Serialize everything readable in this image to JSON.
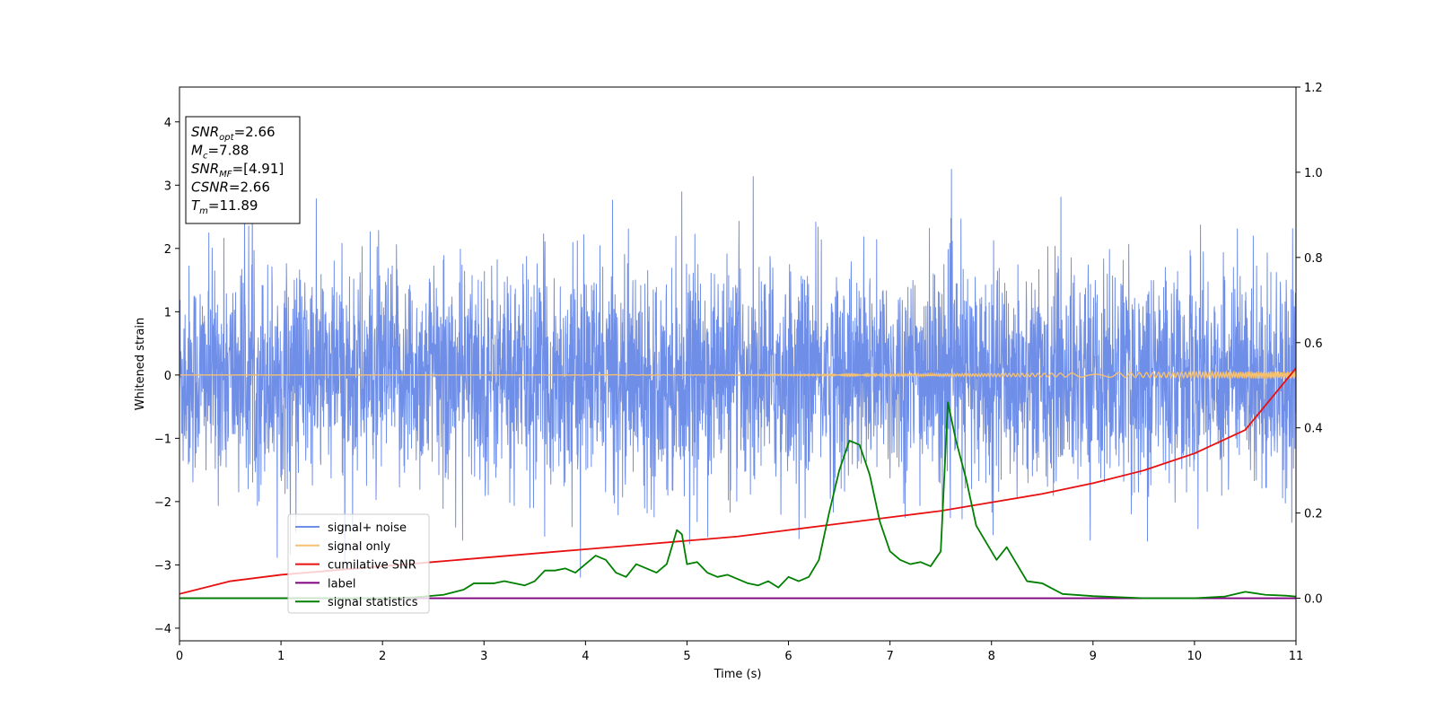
{
  "chart_data": {
    "type": "line",
    "xlabel": "Time (s)",
    "ylabel": "Whitened strain",
    "xlim": [
      0,
      11
    ],
    "ylim": [
      -4.2,
      4.55
    ],
    "y2lim": [
      -0.1,
      1.2
    ],
    "xticks": [
      0,
      1,
      2,
      3,
      4,
      5,
      6,
      7,
      8,
      9,
      10,
      11
    ],
    "yticks": [
      -4,
      -3,
      -2,
      -1,
      0,
      1,
      2,
      3,
      4
    ],
    "y2ticks": [
      "0.0",
      "0.2",
      "0.4",
      "0.6",
      "0.8",
      "1.0",
      "1.2"
    ],
    "grid": false,
    "legend_position": "lower-left",
    "series": [
      {
        "name": "signal+ noise",
        "color": "#6f8ee8",
        "axis": "left",
        "kind": "noise",
        "mean": 0.0,
        "std": 0.85,
        "envelope": [
          -2.6,
          2.6
        ]
      },
      {
        "name": "signal only",
        "color": "#f5c070",
        "axis": "left",
        "kind": "chirp",
        "amp_start": 0.0,
        "amp_end": 0.06
      },
      {
        "name": "cumilative SNR",
        "color": "#e81010",
        "axis": "right",
        "x": [
          0,
          0.5,
          1,
          1.5,
          2,
          2.5,
          3,
          3.5,
          4,
          4.5,
          5,
          5.5,
          6,
          6.5,
          7,
          7.5,
          8,
          8.5,
          9,
          9.5,
          10,
          10.5,
          11
        ],
        "y": [
          0.01,
          0.04,
          0.055,
          0.065,
          0.075,
          0.085,
          0.095,
          0.105,
          0.115,
          0.125,
          0.135,
          0.145,
          0.16,
          0.175,
          0.19,
          0.205,
          0.225,
          0.245,
          0.27,
          0.3,
          0.34,
          0.395,
          0.54
        ]
      },
      {
        "name": "label",
        "color": "#800080",
        "axis": "right",
        "x": [
          0,
          11
        ],
        "y": [
          0.0,
          0.0
        ]
      },
      {
        "name": "signal statistics",
        "color": "#008000",
        "axis": "right",
        "x": [
          0,
          0.5,
          1,
          1.5,
          2,
          2.3,
          2.6,
          2.8,
          2.9,
          3.0,
          3.1,
          3.2,
          3.3,
          3.4,
          3.5,
          3.6,
          3.7,
          3.8,
          3.9,
          4.0,
          4.1,
          4.2,
          4.3,
          4.4,
          4.5,
          4.6,
          4.7,
          4.8,
          4.9,
          4.95,
          5.0,
          5.1,
          5.2,
          5.3,
          5.4,
          5.5,
          5.6,
          5.7,
          5.8,
          5.9,
          6.0,
          6.1,
          6.2,
          6.3,
          6.4,
          6.5,
          6.6,
          6.7,
          6.8,
          6.9,
          7.0,
          7.1,
          7.2,
          7.3,
          7.4,
          7.5,
          7.57,
          7.65,
          7.75,
          7.85,
          7.95,
          8.05,
          8.15,
          8.25,
          8.35,
          8.5,
          8.7,
          9.0,
          9.5,
          10.0,
          10.3,
          10.5,
          10.7,
          10.9,
          11.0
        ],
        "y": [
          0.0,
          0.0,
          0.0,
          0.0,
          0.0,
          0.002,
          0.008,
          0.02,
          0.035,
          0.035,
          0.035,
          0.04,
          0.035,
          0.03,
          0.04,
          0.065,
          0.065,
          0.07,
          0.06,
          0.08,
          0.1,
          0.09,
          0.06,
          0.05,
          0.08,
          0.07,
          0.06,
          0.08,
          0.16,
          0.15,
          0.08,
          0.085,
          0.06,
          0.05,
          0.055,
          0.045,
          0.035,
          0.03,
          0.04,
          0.025,
          0.05,
          0.04,
          0.05,
          0.09,
          0.2,
          0.3,
          0.37,
          0.36,
          0.29,
          0.18,
          0.11,
          0.09,
          0.08,
          0.085,
          0.075,
          0.11,
          0.46,
          0.37,
          0.28,
          0.17,
          0.13,
          0.09,
          0.12,
          0.08,
          0.04,
          0.035,
          0.01,
          0.005,
          0.0,
          0.0,
          0.004,
          0.015,
          0.008,
          0.006,
          0.004
        ]
      }
    ],
    "annotation": {
      "lines": [
        {
          "base": "SNR",
          "sub": "opt",
          "value": "=2.66"
        },
        {
          "base": "M",
          "sub": "c",
          "value": "=7.88"
        },
        {
          "base": "SNR",
          "sub": "MF",
          "value": "=[4.91]"
        },
        {
          "base": "CSNR",
          "sub": "",
          "value": "=2.66"
        },
        {
          "base": "T",
          "sub": "m",
          "value": "=11.89"
        }
      ]
    }
  }
}
